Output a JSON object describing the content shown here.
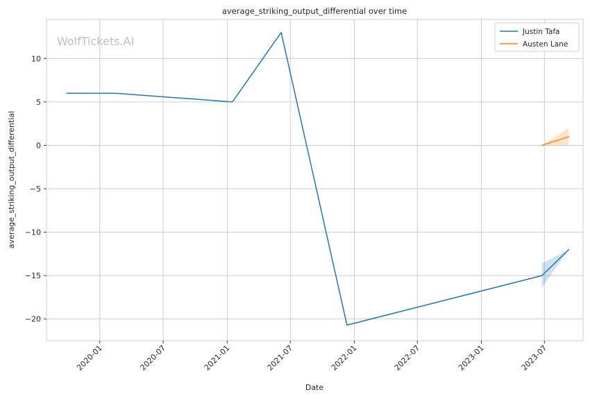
{
  "chart_data": {
    "type": "line",
    "title": "average_striking_output_differential over time",
    "xlabel": "Date",
    "ylabel": "average_striking_output_differential",
    "watermark": "WolfTickets.AI",
    "x_ticks": [
      "2020-01",
      "2020-07",
      "2021-01",
      "2021-07",
      "2022-01",
      "2022-07",
      "2023-01",
      "2023-07"
    ],
    "y_ticks": [
      10,
      5,
      0,
      -5,
      -10,
      -15,
      -20
    ],
    "y_tick_labels": [
      "10",
      "5",
      "0",
      "−5",
      "−10",
      "−15",
      "−20"
    ],
    "xlim": [
      "2019-08-01",
      "2023-10-20"
    ],
    "ylim": [
      -22.5,
      14.5
    ],
    "grid": true,
    "legend_position": "top-right",
    "series": [
      {
        "name": "Justin Tafa",
        "color": "#1f77b4",
        "points": [
          {
            "x": "2019-09-28",
            "y": 6
          },
          {
            "x": "2020-02-15",
            "y": 6
          },
          {
            "x": "2021-01-16",
            "y": 5
          },
          {
            "x": "2021-06-05",
            "y": 13
          },
          {
            "x": "2021-12-11",
            "y": -20.7
          },
          {
            "x": "2023-06-24",
            "y": -15
          },
          {
            "x": "2023-09-09",
            "y": -12
          }
        ],
        "band": [
          {
            "x": "2023-06-24",
            "lo": -16.4,
            "hi": -13.6
          },
          {
            "x": "2023-09-09",
            "lo": -12,
            "hi": -12
          }
        ]
      },
      {
        "name": "Austen Lane",
        "color": "#ff7f0e",
        "points": [
          {
            "x": "2023-06-24",
            "y": 0
          },
          {
            "x": "2023-09-09",
            "y": 1
          }
        ],
        "band": [
          {
            "x": "2023-06-24",
            "lo": 0,
            "hi": 0
          },
          {
            "x": "2023-09-09",
            "lo": 0,
            "hi": 2
          }
        ]
      }
    ]
  }
}
